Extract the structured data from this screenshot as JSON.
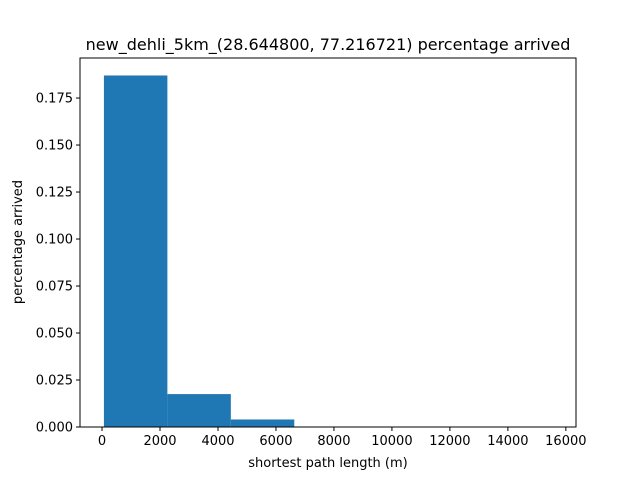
{
  "chart_data": {
    "type": "bar",
    "title": "new_dehli_5km_(28.644800, 77.216721) percentage arrived",
    "xlabel": "shortest path length (m)",
    "ylabel": "percentage arrived",
    "xlim": [
      -760,
      16350
    ],
    "ylim": [
      0,
      0.1963
    ],
    "xticks": [
      0,
      2000,
      4000,
      6000,
      8000,
      10000,
      12000,
      14000,
      16000
    ],
    "xtick_labels": [
      "0",
      "2000",
      "4000",
      "6000",
      "8000",
      "10000",
      "12000",
      "14000",
      "16000"
    ],
    "yticks": [
      0.0,
      0.025,
      0.05,
      0.075,
      0.1,
      0.125,
      0.15,
      0.175
    ],
    "ytick_labels": [
      "0.000",
      "0.025",
      "0.050",
      "0.075",
      "0.100",
      "0.125",
      "0.150",
      "0.175"
    ],
    "bins": [
      {
        "x0": 65,
        "x1": 2254,
        "value": 0.187
      },
      {
        "x0": 2254,
        "x1": 4443,
        "value": 0.0175
      },
      {
        "x0": 4443,
        "x1": 6632,
        "value": 0.004
      },
      {
        "x0": 6632,
        "x1": 8821,
        "value": 0.0
      },
      {
        "x0": 8821,
        "x1": 11010,
        "value": 0.0
      },
      {
        "x0": 11010,
        "x1": 13199,
        "value": 0.0
      },
      {
        "x0": 13199,
        "x1": 15388,
        "value": 0.0
      }
    ],
    "bar_color": "#1f77b4",
    "grid": false,
    "legend": false
  }
}
